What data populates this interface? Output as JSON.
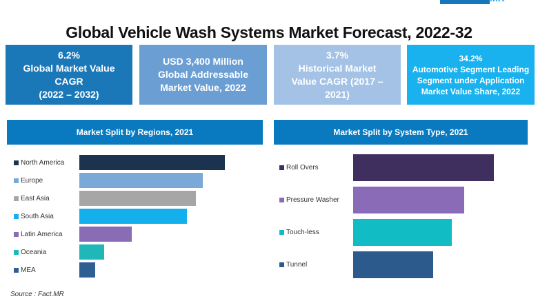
{
  "logo": "Fact.MR",
  "title": "Global Vehicle Wash Systems Market Forecast, 2022-32",
  "cards": [
    {
      "lines": [
        "6.2%",
        "Global Market Value",
        "CAGR",
        "(2022 – 2032)"
      ],
      "color": "#1b78b8"
    },
    {
      "lines": [
        "USD 3,400 Million",
        "Global Addressable",
        "Market Value, 2022"
      ],
      "color": "#6b9ed3"
    },
    {
      "lines": [
        "3.7%",
        "Historical Market",
        "Value CAGR (2017 –",
        "2021)"
      ],
      "color": "#a3c2e6"
    },
    {
      "lines": [
        "34.2%",
        "Automotive Segment Leading",
        "Segment under Application",
        "Market Value Share, 2022"
      ],
      "color": "#19b1ee"
    }
  ],
  "source": "Source : Fact.MR",
  "chart_data": [
    {
      "type": "bar",
      "orientation": "horizontal",
      "title": "Market Split by Regions, 2021",
      "categories": [
        "North America",
        "Europe",
        "East Asia",
        "South Asia",
        "Latin America",
        "Oceania",
        "MEA"
      ],
      "values": [
        100,
        85,
        80,
        74,
        36,
        17,
        11
      ],
      "colors": [
        "#1c3350",
        "#7aa9d8",
        "#a6a6a6",
        "#14b0ee",
        "#8a6bb5",
        "#1fb7b7",
        "#2e5e92"
      ],
      "legend": "left",
      "grid": false
    },
    {
      "type": "bar",
      "orientation": "horizontal",
      "title": "Market Split by System Type, 2021",
      "categories": [
        "Roll Overs",
        "Pressure Washer",
        "Touch-less",
        "Tunnel"
      ],
      "values": [
        100,
        79,
        70,
        57
      ],
      "colors": [
        "#3f2f5e",
        "#8a6bb8",
        "#12bcc4",
        "#2c5a8c"
      ],
      "legend": "left",
      "grid": false
    }
  ]
}
